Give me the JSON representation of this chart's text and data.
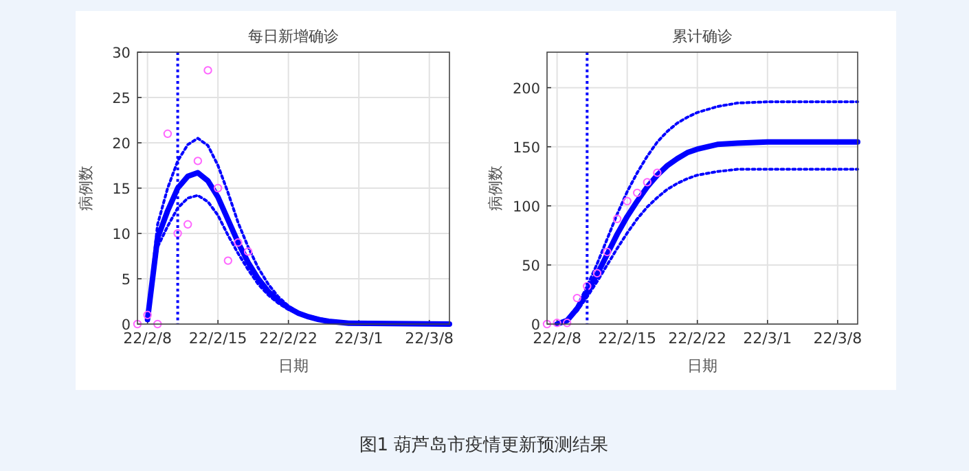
{
  "chart_data": [
    {
      "type": "line",
      "title": "每日新增确诊",
      "xlabel": "日期",
      "ylabel": "病例数",
      "grid": true,
      "xlim": [
        "--02-07",
        "--03-10"
      ],
      "ylim": [
        0,
        30
      ],
      "xticks": [
        {
          "value": "--02-08",
          "label": "22/2/8"
        },
        {
          "value": "--02-15",
          "label": "22/2/15"
        },
        {
          "value": "--02-22",
          "label": "22/2/22"
        },
        {
          "value": "--03-01",
          "label": "22/3/1"
        },
        {
          "value": "--03-08",
          "label": "22/3/8"
        }
      ],
      "yticks": [
        0,
        5,
        10,
        15,
        20,
        25,
        30
      ],
      "ref_lines": [
        {
          "axis": "x",
          "value": "--02-11",
          "color": "#0000ff",
          "line_style": "dotted"
        }
      ],
      "series": [
        {
          "type": "line",
          "line_style": "dotted",
          "color": "#0000ff",
          "x": [
            "--02-08",
            "--02-09",
            "--02-10",
            "--02-11",
            "--02-12",
            "--02-13",
            "--02-14",
            "--02-15",
            "--02-16",
            "--02-17",
            "--02-18",
            "--02-19",
            "--02-20",
            "--02-21",
            "--02-22",
            "--02-23",
            "--02-24",
            "--02-26",
            "--02-28",
            "--03-03",
            "--03-10"
          ],
          "values": [
            0.8,
            11,
            15,
            18,
            19.8,
            20.5,
            19.7,
            17.5,
            14.5,
            11.2,
            8.5,
            6.2,
            4.4,
            3,
            2,
            1.3,
            0.9,
            0.4,
            0.2,
            0.1,
            0
          ]
        },
        {
          "type": "line",
          "line_style": "dotted",
          "color": "#0000ff",
          "x": [
            "--02-08",
            "--02-09",
            "--02-10",
            "--02-11",
            "--02-12",
            "--02-13",
            "--02-14",
            "--02-15",
            "--02-16",
            "--02-17",
            "--02-18",
            "--02-19",
            "--02-20",
            "--02-21",
            "--02-22",
            "--02-24",
            "--02-26",
            "--02-28",
            "--03-10"
          ],
          "values": [
            0.4,
            8.5,
            10.8,
            12.8,
            13.9,
            14.2,
            13.5,
            12,
            9.8,
            7.8,
            6,
            4.4,
            3.2,
            2.3,
            1.6,
            0.7,
            0.3,
            0.1,
            0
          ]
        },
        {
          "type": "line",
          "line_style": "solid",
          "color": "#0000ff",
          "x": [
            "--02-08",
            "--02-09",
            "--02-10",
            "--02-11",
            "--02-12",
            "--02-13",
            "--02-14",
            "--02-15",
            "--02-16",
            "--02-17",
            "--02-18",
            "--02-19",
            "--02-20",
            "--02-21",
            "--02-22",
            "--02-23",
            "--02-24",
            "--02-25",
            "--02-26",
            "--02-28",
            "--03-10"
          ],
          "values": [
            0.5,
            9.5,
            12.5,
            15,
            16.3,
            16.7,
            15.8,
            14,
            11.5,
            9,
            6.8,
            5,
            3.6,
            2.6,
            1.8,
            1.2,
            0.8,
            0.5,
            0.3,
            0.1,
            0
          ]
        },
        {
          "type": "scatter",
          "marker": "circle",
          "color": "#ff66ff",
          "x": [
            "--02-07",
            "--02-08",
            "--02-09",
            "--02-10",
            "--02-11",
            "--02-12",
            "--02-13",
            "--02-14",
            "--02-15",
            "--02-16",
            "--02-17",
            "--02-18"
          ],
          "values": [
            0,
            1,
            0,
            21,
            10,
            11,
            18,
            28,
            15,
            7,
            9,
            8
          ]
        }
      ]
    },
    {
      "type": "line",
      "title": "累计确诊",
      "xlabel": "日期",
      "ylabel": "病例数",
      "grid": true,
      "xlim": [
        "--02-07",
        "--03-10"
      ],
      "ylim": [
        0,
        230
      ],
      "xticks": [
        {
          "value": "--02-08",
          "label": "22/2/8"
        },
        {
          "value": "--02-15",
          "label": "22/2/15"
        },
        {
          "value": "--02-22",
          "label": "22/2/22"
        },
        {
          "value": "--03-01",
          "label": "22/3/1"
        },
        {
          "value": "--03-08",
          "label": "22/3/8"
        }
      ],
      "yticks": [
        0,
        50,
        100,
        150,
        200
      ],
      "ref_lines": [
        {
          "axis": "x",
          "value": "--02-11",
          "color": "#0000ff",
          "line_style": "dotted"
        }
      ],
      "annotations": [
        "图1 葫芦岛市疫情更新预测结果"
      ],
      "series": [
        {
          "type": "line",
          "line_style": "dotted",
          "color": "#0000ff",
          "x": [
            "--02-08",
            "--02-09",
            "--02-10",
            "--02-11",
            "--02-12",
            "--02-13",
            "--02-14",
            "--02-15",
            "--02-16",
            "--02-17",
            "--02-18",
            "--02-19",
            "--02-20",
            "--02-21",
            "--02-22",
            "--02-24",
            "--02-26",
            "--03-01",
            "--03-10"
          ],
          "values": [
            0,
            4,
            15,
            32,
            51,
            72,
            93,
            112,
            128,
            142,
            154,
            163,
            170,
            175,
            179,
            184,
            187,
            188,
            188
          ]
        },
        {
          "type": "line",
          "line_style": "dotted",
          "color": "#0000ff",
          "x": [
            "--02-08",
            "--02-09",
            "--02-10",
            "--02-11",
            "--02-12",
            "--02-13",
            "--02-14",
            "--02-15",
            "--02-16",
            "--02-17",
            "--02-18",
            "--02-19",
            "--02-20",
            "--02-21",
            "--02-22",
            "--02-24",
            "--02-26",
            "--03-01",
            "--03-10"
          ],
          "values": [
            0,
            3,
            11,
            23,
            36,
            50,
            64,
            77,
            89,
            99,
            107,
            114,
            119,
            123,
            126,
            129,
            131,
            131,
            131
          ]
        },
        {
          "type": "line",
          "line_style": "solid",
          "color": "#0000ff",
          "x": [
            "--02-08",
            "--02-09",
            "--02-10",
            "--02-11",
            "--02-12",
            "--02-13",
            "--02-14",
            "--02-15",
            "--02-16",
            "--02-17",
            "--02-18",
            "--02-19",
            "--02-20",
            "--02-21",
            "--02-22",
            "--02-24",
            "--02-26",
            "--03-01",
            "--03-10"
          ],
          "values": [
            0,
            3,
            13,
            27,
            42,
            59,
            76,
            91,
            104,
            116,
            126,
            134,
            140,
            145,
            148,
            152,
            153,
            154,
            154
          ]
        },
        {
          "type": "scatter",
          "marker": "circle",
          "color": "#ff66ff",
          "x": [
            "--02-07",
            "--02-08",
            "--02-09",
            "--02-10",
            "--02-11",
            "--02-12",
            "--02-13",
            "--02-14",
            "--02-15",
            "--02-16",
            "--02-17",
            "--02-18"
          ],
          "values": [
            0,
            1,
            1,
            22,
            32,
            43,
            61,
            89,
            104,
            111,
            120,
            128
          ]
        }
      ]
    }
  ]
}
